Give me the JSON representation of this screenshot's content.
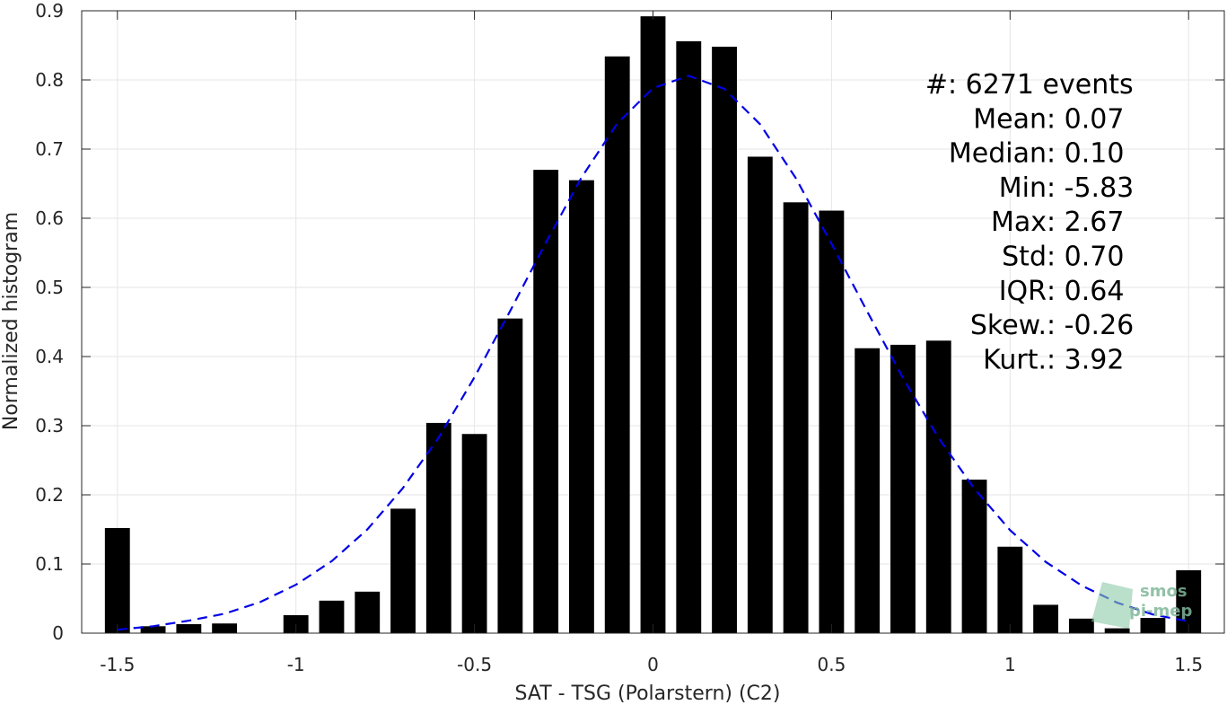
{
  "chart_data": {
    "type": "bar",
    "xlabel": "SAT - TSG (Polarstern) (C2)",
    "ylabel": "Normalized histogram",
    "xlim": [
      -1.6,
      1.6
    ],
    "ylim": [
      0,
      0.9
    ],
    "xticks": [
      -1.5,
      -1,
      -0.5,
      0,
      0.5,
      1,
      1.5
    ],
    "xtick_labels": [
      "-1.5",
      "-1",
      "-0.5",
      "0",
      "0.5",
      "1",
      "1.5"
    ],
    "yticks": [
      0,
      0.1,
      0.2,
      0.3,
      0.4,
      0.5,
      0.6,
      0.7,
      0.8,
      0.9
    ],
    "ytick_labels": [
      "0",
      "0.1",
      "0.2",
      "0.3",
      "0.4",
      "0.5",
      "0.6",
      "0.7",
      "0.8",
      "0.9"
    ],
    "grid": true,
    "bar_color": "#000000",
    "bar_width": 0.07,
    "bars": {
      "x": [
        -1.5,
        -1.4,
        -1.3,
        -1.2,
        -1.1,
        -1.0,
        -0.9,
        -0.8,
        -0.7,
        -0.6,
        -0.5,
        -0.4,
        -0.3,
        -0.2,
        -0.1,
        0.0,
        0.1,
        0.2,
        0.3,
        0.4,
        0.5,
        0.6,
        0.7,
        0.8,
        0.9,
        1.0,
        1.1,
        1.2,
        1.3,
        1.4,
        1.5
      ],
      "values": [
        0.152,
        0.01,
        0.013,
        0.014,
        0.0,
        0.026,
        0.047,
        0.06,
        0.18,
        0.304,
        0.288,
        0.455,
        0.67,
        0.655,
        0.834,
        0.892,
        0.856,
        0.848,
        0.689,
        0.623,
        0.611,
        0.412,
        0.417,
        0.423,
        0.222,
        0.125,
        0.041,
        0.021,
        0.007,
        0.022,
        0.091
      ]
    },
    "fit_curve": {
      "style": "dashed",
      "color": "#0000e6",
      "x": [
        -1.5,
        -1.4,
        -1.3,
        -1.2,
        -1.1,
        -1.0,
        -0.9,
        -0.8,
        -0.7,
        -0.6,
        -0.5,
        -0.4,
        -0.3,
        -0.2,
        -0.1,
        0.0,
        0.1,
        0.2,
        0.3,
        0.4,
        0.5,
        0.6,
        0.7,
        0.8,
        0.9,
        1.0,
        1.1,
        1.2,
        1.3,
        1.4,
        1.5
      ],
      "y": [
        0.005,
        0.01,
        0.018,
        0.028,
        0.045,
        0.07,
        0.104,
        0.15,
        0.21,
        0.283,
        0.37,
        0.466,
        0.565,
        0.659,
        0.737,
        0.788,
        0.806,
        0.787,
        0.736,
        0.658,
        0.563,
        0.465,
        0.369,
        0.282,
        0.209,
        0.149,
        0.103,
        0.069,
        0.044,
        0.027,
        0.017
      ]
    },
    "stats": [
      {
        "label": "#  ",
        "value": ": 6271 events"
      },
      {
        "label": "Mean ",
        "value": ": 0.07"
      },
      {
        "label": "Median ",
        "value": ": 0.10"
      },
      {
        "label": "Min ",
        "value": ": -5.83"
      },
      {
        "label": "Max ",
        "value": ": 2.67"
      },
      {
        "label": "Std ",
        "value": ": 0.70"
      },
      {
        "label": "IQR ",
        "value": ": 0.64"
      },
      {
        "label": "Skew. ",
        "value": ": -0.26"
      },
      {
        "label": "Kurt. ",
        "value": ": 3.92"
      }
    ],
    "watermark": [
      "smos",
      "pi-mep"
    ]
  }
}
